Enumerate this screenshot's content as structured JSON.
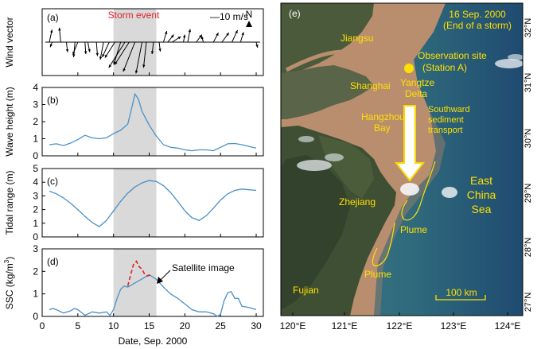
{
  "colors": {
    "line": "#4a90c8",
    "storm_shade": "#d9d9d9",
    "storm_label": "#e0202a",
    "sat_dashed": "#e0202a",
    "map_text": "#ffe000",
    "map_text_white": "#ffffff",
    "arrow_fill": "#ffffff",
    "arrow_stroke": "#ffd800",
    "site_dot": "#ffe000"
  },
  "chart_data": [
    {
      "type": "quiver",
      "panel_label": "(a)",
      "ylabel": "Wind vector",
      "storm_label": "Storm event",
      "scale_label": "—10 m/s",
      "north_label": "N",
      "storm_span": [
        10,
        16
      ],
      "xlim": [
        0,
        31
      ],
      "vectors": [
        {
          "day": 1.0,
          "u": 1.0,
          "v": 4.5
        },
        {
          "day": 1.4,
          "u": -0.7,
          "v": -1.8
        },
        {
          "day": 2.6,
          "u": -0.5,
          "v": 5.2
        },
        {
          "day": 3.4,
          "u": 0.4,
          "v": -3.6
        },
        {
          "day": 4.6,
          "u": -0.5,
          "v": -5.4
        },
        {
          "day": 5.0,
          "u": -1.8,
          "v": -4.5
        },
        {
          "day": 6.0,
          "u": 0.3,
          "v": -4.3
        },
        {
          "day": 6.4,
          "u": 0.7,
          "v": -3.6
        },
        {
          "day": 7.6,
          "u": 0.4,
          "v": -5.0
        },
        {
          "day": 8.6,
          "u": -1.2,
          "v": -6.3
        },
        {
          "day": 9.4,
          "u": -2.5,
          "v": -5.4
        },
        {
          "day": 10.2,
          "u": -3.6,
          "v": -5.6
        },
        {
          "day": 11.0,
          "u": -2.5,
          "v": -8.1
        },
        {
          "day": 11.6,
          "u": -5.8,
          "v": -9.2
        },
        {
          "day": 12.2,
          "u": -5.2,
          "v": -8.1
        },
        {
          "day": 13.0,
          "u": -4.2,
          "v": -10.6
        },
        {
          "day": 14.0,
          "u": -2.2,
          "v": -11.3
        },
        {
          "day": 14.6,
          "u": -1.0,
          "v": -9.2
        },
        {
          "day": 15.6,
          "u": -0.5,
          "v": -4.3
        },
        {
          "day": 16.4,
          "u": 0.4,
          "v": -3.4
        },
        {
          "day": 17.0,
          "u": 1.2,
          "v": 4.0
        },
        {
          "day": 17.6,
          "u": 2.2,
          "v": 2.7
        },
        {
          "day": 18.2,
          "u": 3.2,
          "v": 2.0
        },
        {
          "day": 19.8,
          "u": 0.5,
          "v": 2.7
        },
        {
          "day": 20.4,
          "u": 0.9,
          "v": 4.7
        },
        {
          "day": 21.6,
          "u": 2.0,
          "v": 2.7
        },
        {
          "day": 22.6,
          "u": -0.7,
          "v": 2.2
        },
        {
          "day": 24.0,
          "u": 1.8,
          "v": 3.4
        },
        {
          "day": 25.2,
          "u": 2.5,
          "v": 3.4
        },
        {
          "day": 26.6,
          "u": 2.0,
          "v": 4.3
        },
        {
          "day": 27.8,
          "u": 1.1,
          "v": 3.6
        },
        {
          "day": 30.0,
          "u": 0.5,
          "v": -2.0
        }
      ]
    },
    {
      "type": "line",
      "panel_label": "(b)",
      "ylabel": "Wave height (m)",
      "ylim": [
        0,
        4
      ],
      "yticks": [
        0,
        1,
        2,
        3,
        4
      ],
      "storm_span": [
        10,
        16
      ],
      "x": [
        1,
        2,
        3,
        4,
        5,
        6,
        7,
        8,
        9,
        10,
        11,
        12,
        12.5,
        13,
        13.5,
        14,
        15,
        16,
        17,
        18,
        19,
        20,
        21,
        22,
        23,
        24,
        25,
        26,
        27,
        28,
        29,
        30
      ],
      "y": [
        0.65,
        0.7,
        0.6,
        0.75,
        0.95,
        1.2,
        1.05,
        1.0,
        1.05,
        1.3,
        1.5,
        1.85,
        2.7,
        3.62,
        3.3,
        2.6,
        1.8,
        1.15,
        0.65,
        0.5,
        0.45,
        0.35,
        0.3,
        0.35,
        0.35,
        0.3,
        0.5,
        0.7,
        0.72,
        0.65,
        0.55,
        0.45
      ]
    },
    {
      "type": "line",
      "panel_label": "(c)",
      "ylabel": "Tidal range (m)",
      "ylim": [
        0,
        5
      ],
      "yticks": [
        0,
        1,
        2,
        3,
        4,
        5
      ],
      "storm_span": [
        10,
        16
      ],
      "x": [
        1,
        2,
        3,
        4,
        5,
        6,
        7,
        8,
        9,
        10,
        11,
        12,
        13,
        14,
        15,
        16,
        17,
        18,
        19,
        20,
        21,
        22,
        23,
        24,
        25,
        26,
        27,
        28,
        29,
        30
      ],
      "y": [
        3.35,
        3.15,
        2.85,
        2.45,
        2.0,
        1.5,
        1.05,
        0.75,
        1.2,
        1.9,
        2.6,
        3.2,
        3.65,
        3.95,
        4.12,
        4.05,
        3.75,
        3.25,
        2.6,
        1.9,
        1.4,
        1.2,
        1.55,
        2.1,
        2.7,
        3.15,
        3.4,
        3.5,
        3.45,
        3.4
      ]
    },
    {
      "type": "line",
      "panel_label": "(d)",
      "ylabel": "SSC (kg/m³)",
      "ylabel_main": "SSC (kg/m",
      "ylabel_sup": "3",
      "ylabel_end": ")",
      "xlabel": "Date, Sep. 2000",
      "xlim": [
        0,
        31
      ],
      "xticks": [
        0,
        5,
        10,
        15,
        20,
        25,
        30
      ],
      "ylim": [
        0,
        3
      ],
      "yticks": [
        0,
        1,
        2,
        3
      ],
      "storm_span": [
        10,
        16
      ],
      "annotation": "Satellite image",
      "annotation_x": 16,
      "x": [
        1,
        1.5,
        2,
        3,
        4,
        4.5,
        5,
        6,
        7,
        8,
        9,
        9.5,
        10,
        10.5,
        11,
        11.5,
        12,
        15,
        15.5,
        16,
        17,
        18,
        19,
        20,
        21,
        22,
        23,
        24,
        24.6,
        25,
        25.5,
        26,
        26.5,
        27,
        27.5,
        28,
        29,
        30
      ],
      "y": [
        0.3,
        0.35,
        0.3,
        0.15,
        0.25,
        0.35,
        0.3,
        0.05,
        0.2,
        0.15,
        0.2,
        0.05,
        0.3,
        0.8,
        1.2,
        1.35,
        1.3,
        1.85,
        1.75,
        1.65,
        1.3,
        1.0,
        0.8,
        0.55,
        0.3,
        0.2,
        0.2,
        0.12,
        0.0,
        0.1,
        0.7,
        1.05,
        1.1,
        0.8,
        0.8,
        0.45,
        0.4,
        0.3
      ],
      "dashed_x": [
        12,
        12.4,
        12.8,
        13.2,
        13.6,
        14,
        14.4,
        14.8,
        15.2
      ],
      "dashed_y": [
        1.35,
        1.85,
        2.3,
        2.45,
        2.2,
        2.1,
        1.85,
        1.8,
        1.85
      ]
    }
  ],
  "map": {
    "panel_label": "(e)",
    "date_line1": "16 Sep. 2000",
    "date_line2": "(End of a storm)",
    "places": {
      "jiangsu": "Jiangsu",
      "shanghai": "Shanghai",
      "yangtze_line1": "Yangtze",
      "yangtze_line2": "Delta",
      "site_line1": "Observation site",
      "site_line2": "(Station A)",
      "hangzhou_line1": "Hangzhou",
      "hangzhou_line2": "Bay",
      "transport_line1": "Southward",
      "transport_line2": "sediment",
      "transport_line3": "transport",
      "ecs_line1": "East",
      "ecs_line2": "China",
      "ecs_line3": "Sea",
      "zhejiang": "Zhejiang",
      "plume1": "Plume",
      "plume2": "Plume",
      "fujian": "Fujian"
    },
    "scale_bar": "100 km",
    "lon_ticks": [
      "120°E",
      "121°E",
      "122°E",
      "123°E",
      "124°E"
    ],
    "lat_ticks": [
      "32°N",
      "31°N",
      "30°N",
      "29°N",
      "28°N",
      "27°N"
    ]
  }
}
